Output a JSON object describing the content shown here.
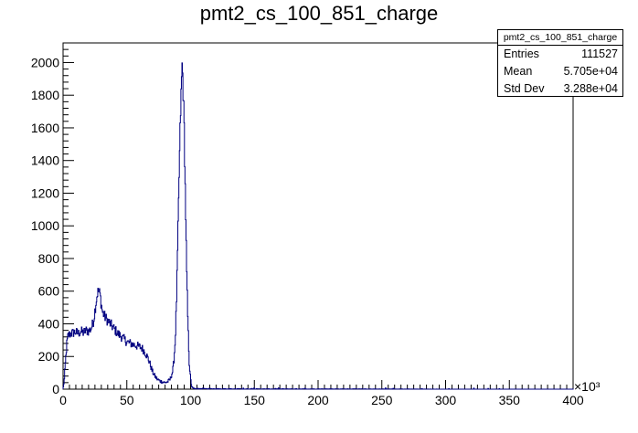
{
  "chart_data": {
    "type": "histogram",
    "title": "pmt2_cs_100_851_charge",
    "xlabel": "",
    "ylabel": "",
    "x_multiplier_label": "×10³",
    "xlim": [
      0,
      400
    ],
    "ylim": [
      0,
      2120
    ],
    "xticks": [
      0,
      50,
      100,
      150,
      200,
      250,
      300,
      350,
      400
    ],
    "yticks": [
      0,
      200,
      400,
      600,
      800,
      1000,
      1200,
      1400,
      1600,
      1800,
      2000
    ],
    "line_color": "#000080",
    "grid": false,
    "stats": {
      "name": "pmt2_cs_100_851_charge",
      "rows": [
        {
          "label": "Entries",
          "value": "111527"
        },
        {
          "label": "Mean",
          "value": "5.705e+04"
        },
        {
          "label": "Std Dev",
          "value": "3.288e+04"
        }
      ]
    },
    "profile": [
      [
        0,
        0
      ],
      [
        1,
        60
      ],
      [
        2,
        180
      ],
      [
        3,
        280
      ],
      [
        4,
        330
      ],
      [
        6,
        340
      ],
      [
        8,
        345
      ],
      [
        10,
        350
      ],
      [
        12,
        340
      ],
      [
        14,
        355
      ],
      [
        16,
        345
      ],
      [
        18,
        360
      ],
      [
        20,
        355
      ],
      [
        22,
        370
      ],
      [
        24,
        420
      ],
      [
        25,
        480
      ],
      [
        26,
        540
      ],
      [
        27,
        590
      ],
      [
        28,
        600
      ],
      [
        29,
        580
      ],
      [
        30,
        520
      ],
      [
        31,
        470
      ],
      [
        33,
        440
      ],
      [
        35,
        420
      ],
      [
        37,
        400
      ],
      [
        40,
        370
      ],
      [
        43,
        340
      ],
      [
        46,
        320
      ],
      [
        50,
        290
      ],
      [
        53,
        280
      ],
      [
        56,
        270
      ],
      [
        58,
        265
      ],
      [
        60,
        260
      ],
      [
        62,
        250
      ],
      [
        64,
        230
      ],
      [
        66,
        200
      ],
      [
        68,
        160
      ],
      [
        70,
        110
      ],
      [
        72,
        80
      ],
      [
        74,
        60
      ],
      [
        76,
        50
      ],
      [
        78,
        45
      ],
      [
        80,
        40
      ],
      [
        82,
        45
      ],
      [
        84,
        60
      ],
      [
        86,
        110
      ],
      [
        87,
        180
      ],
      [
        88,
        300
      ],
      [
        89,
        550
      ],
      [
        90,
        900
      ],
      [
        91,
        1300
      ],
      [
        92,
        1650
      ],
      [
        93,
        1900
      ],
      [
        93.5,
        2000
      ],
      [
        94,
        1880
      ],
      [
        95,
        1600
      ],
      [
        96,
        1150
      ],
      [
        97,
        700
      ],
      [
        98,
        380
      ],
      [
        99,
        160
      ],
      [
        100,
        60
      ],
      [
        101,
        15
      ],
      [
        102,
        5
      ],
      [
        105,
        3
      ],
      [
        120,
        2
      ],
      [
        150,
        1
      ],
      [
        200,
        1
      ],
      [
        300,
        0
      ],
      [
        400,
        0
      ]
    ]
  }
}
